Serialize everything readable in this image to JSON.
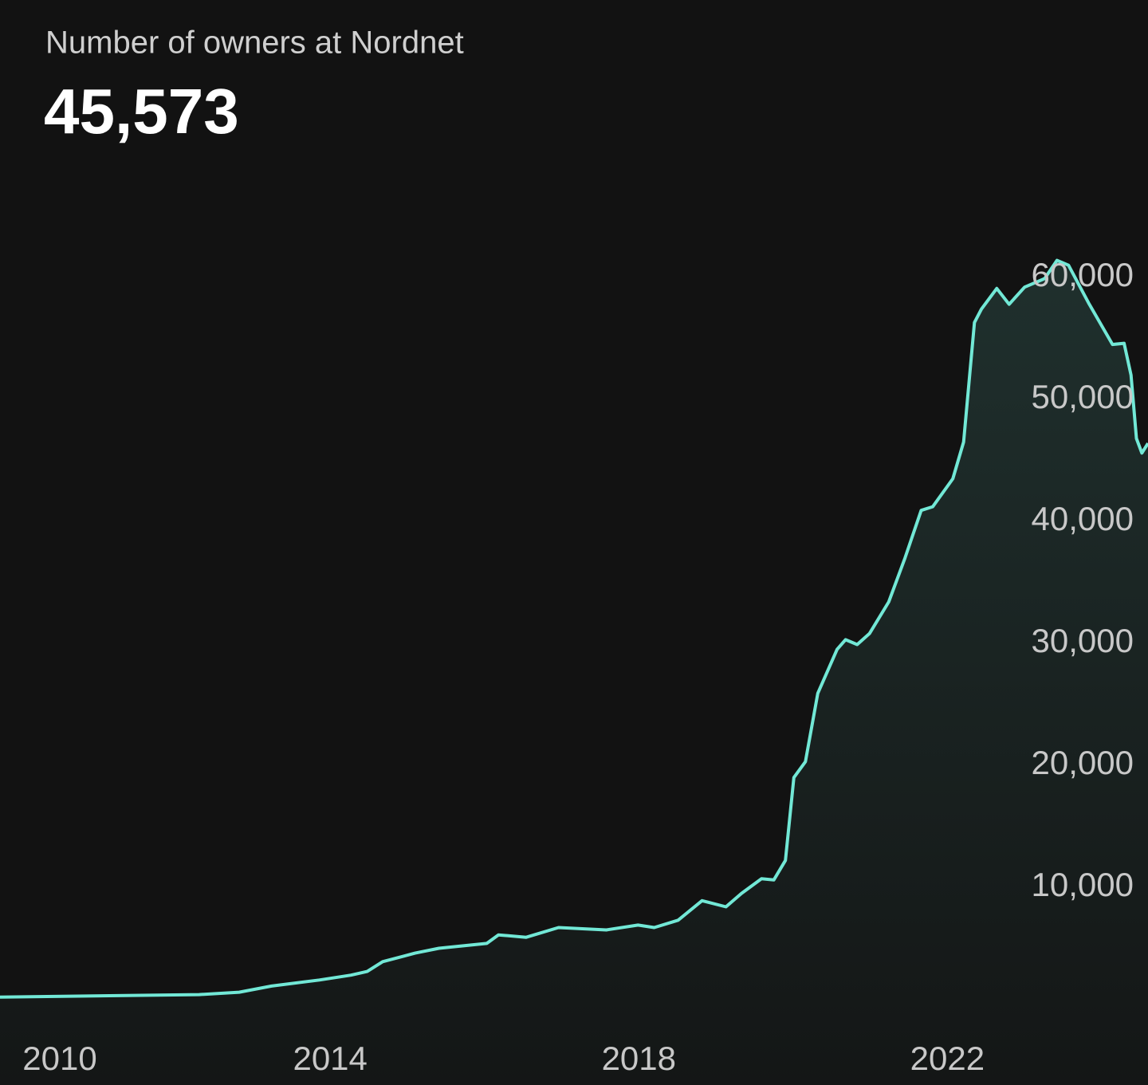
{
  "chart_data": {
    "type": "line",
    "title": "Number of owners at Nordnet",
    "headline": "45,573",
    "x": [
      2009.72,
      2012.3,
      2012.82,
      2013.24,
      2013.86,
      2014.27,
      2014.48,
      2014.68,
      2015.1,
      2015.41,
      2016.03,
      2016.18,
      2016.54,
      2016.96,
      2017.58,
      2017.99,
      2018.2,
      2018.51,
      2018.82,
      2019.13,
      2019.33,
      2019.59,
      2019.75,
      2019.9,
      2020.01,
      2020.16,
      2020.32,
      2020.57,
      2020.68,
      2020.83,
      2020.99,
      2021.24,
      2021.45,
      2021.66,
      2021.81,
      2022.07,
      2022.21,
      2022.35,
      2022.44,
      2022.64,
      2022.8,
      2023.0,
      2023.26,
      2023.42,
      2023.57,
      2023.83,
      2024.14,
      2024.29,
      2024.38,
      2024.45,
      2024.52,
      2024.6
    ],
    "series": [
      {
        "name": "Number of owners",
        "color": "#72e8d6",
        "values": [
          1000,
          1200,
          1400,
          1900,
          2400,
          2800,
          3100,
          3900,
          4600,
          5000,
          5400,
          6100,
          5900,
          6700,
          6500,
          6900,
          6700,
          7300,
          8900,
          8400,
          9500,
          10700,
          10600,
          12200,
          19000,
          20300,
          25900,
          29500,
          30300,
          29900,
          30800,
          33400,
          37000,
          40900,
          41200,
          43500,
          46500,
          56300,
          57400,
          59100,
          57800,
          59200,
          59900,
          61400,
          61000,
          57900,
          54500,
          54600,
          52000,
          46800,
          45600,
          46400
        ]
      }
    ],
    "xlim": [
      2009.72,
      2024.6
    ],
    "xticks": [
      2010,
      2014,
      2018,
      2022
    ],
    "ylim": [
      0,
      65000
    ],
    "yticks": [
      {
        "value": 10000,
        "label": "10,000"
      },
      {
        "value": 20000,
        "label": "20,000"
      },
      {
        "value": 30000,
        "label": "30,000"
      },
      {
        "value": 40000,
        "label": "40,000"
      },
      {
        "value": 50000,
        "label": "50,000"
      },
      {
        "value": 60000,
        "label": "60,000"
      }
    ],
    "grid": false
  }
}
